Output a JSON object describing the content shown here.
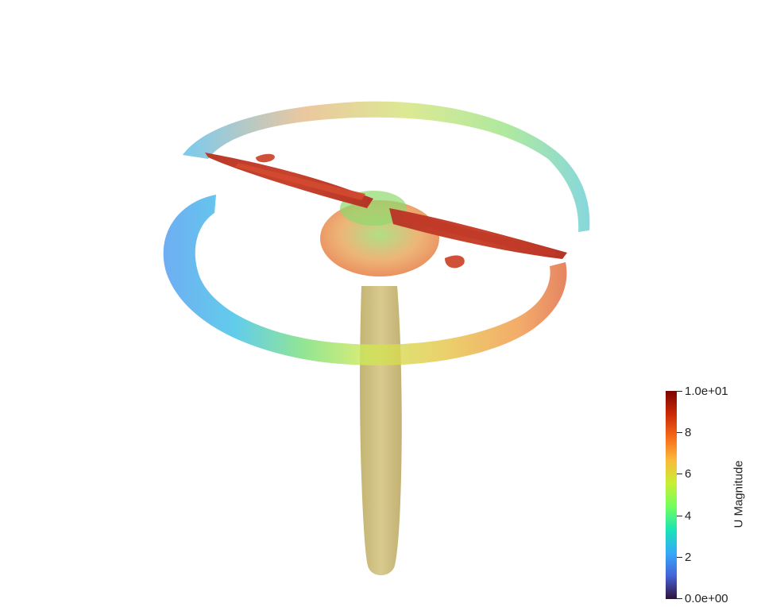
{
  "colorbar": {
    "title": "U Magnitude",
    "max_label": "1.0e+01",
    "min_label": "0.0e+00",
    "tick_labels": [
      "8",
      "6",
      "4",
      "2"
    ],
    "range": [
      0,
      10
    ],
    "colors": [
      "#30123b",
      "#4662d8",
      "#36aaf9",
      "#1ae4b6",
      "#72fe5e",
      "#c8ef34",
      "#faba39",
      "#f66b19",
      "#ca2a04",
      "#7a0403"
    ]
  }
}
